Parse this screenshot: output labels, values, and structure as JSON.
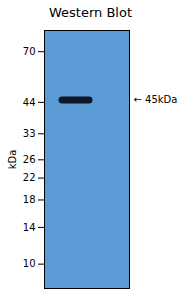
{
  "chart_data": {
    "type": "band",
    "title": "Western Blot",
    "ylabel": "kDa",
    "values": [
      45
    ],
    "color": "#0a0a1a",
    "ylim": [
      8,
      85
    ],
    "yticks": [
      10,
      14,
      18,
      22,
      26,
      33,
      44,
      70
    ],
    "log": "y",
    "grid": false,
    "tick_labels": "y",
    "annotations": [
      {
        "text": "← 45kDa",
        "y": 45
      }
    ]
  }
}
